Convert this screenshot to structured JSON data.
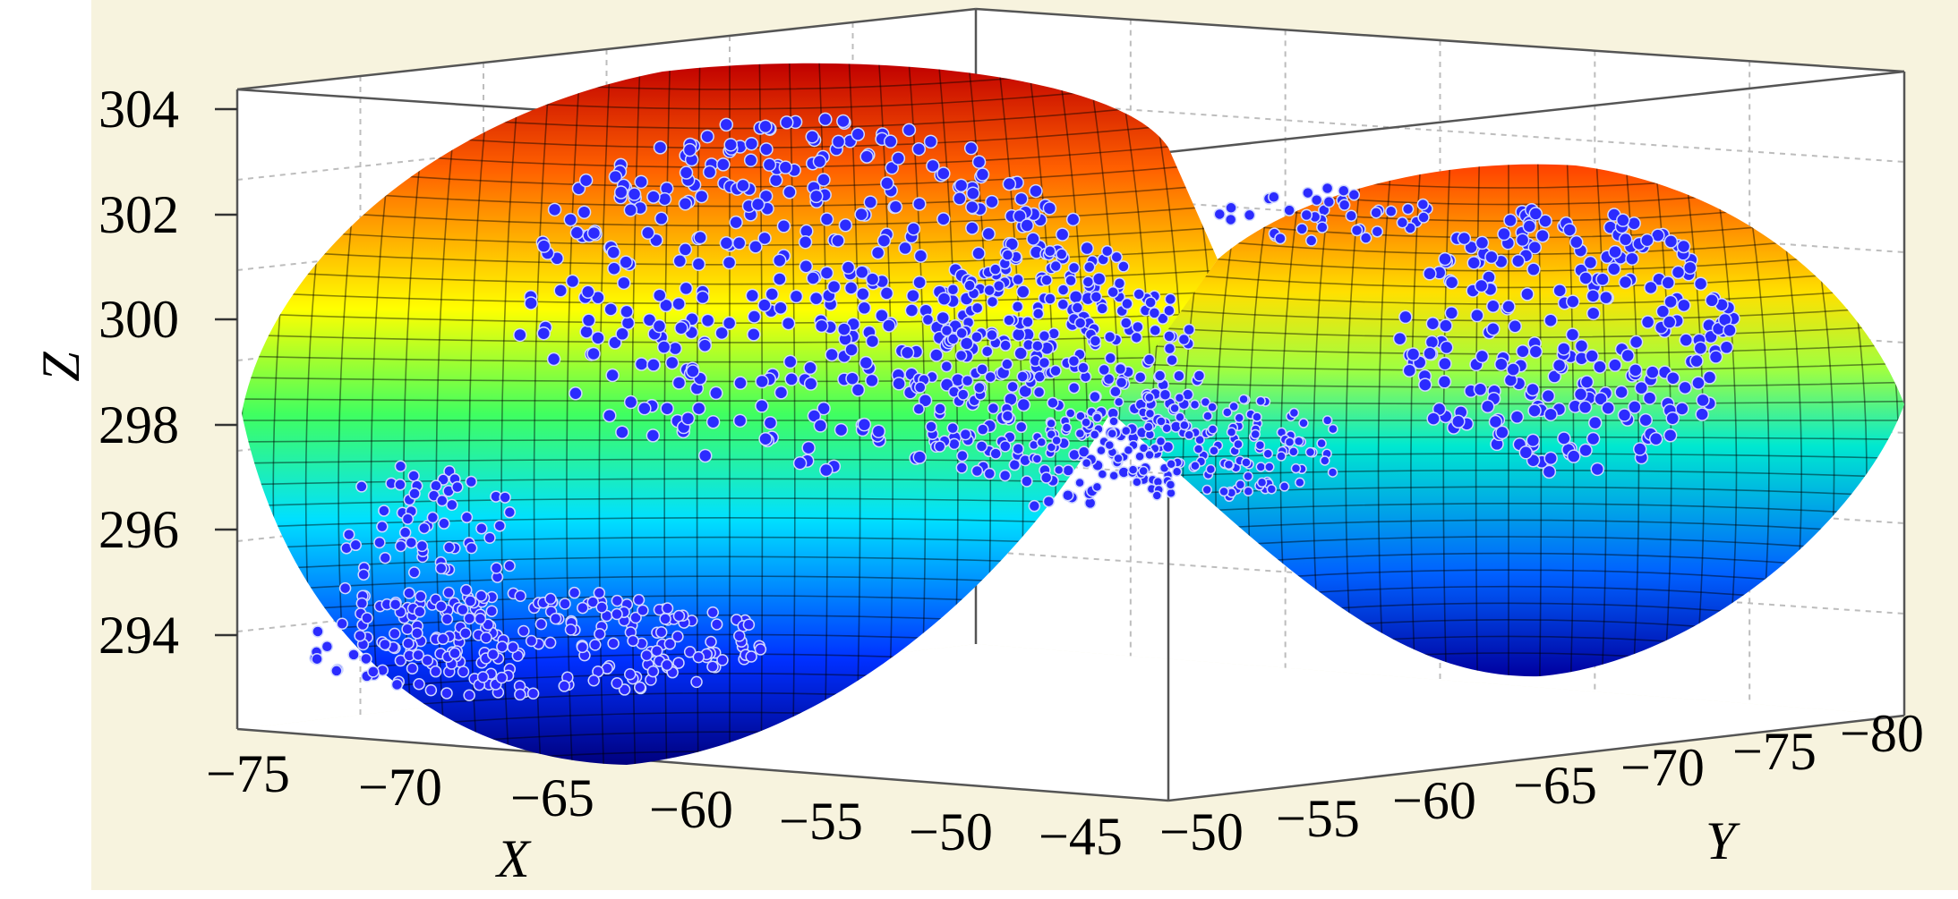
{
  "chart_data": {
    "type": "surface-scatter-3d",
    "title": "",
    "xlabel": "X",
    "ylabel": "Y",
    "zlabel": "Z",
    "x_ticks": [
      "−75",
      "−70",
      "−65",
      "−60",
      "−55",
      "−50",
      "−45"
    ],
    "y_ticks": [
      "−50",
      "−55",
      "−60",
      "−65",
      "−70",
      "−75",
      "−80"
    ],
    "z_ticks": [
      "304",
      "302",
      "300",
      "298",
      "296",
      "294"
    ],
    "xlim": [
      -77,
      -44
    ],
    "ylim": [
      -80,
      -49
    ],
    "zlim": [
      292,
      305
    ],
    "surface": {
      "shape": "saddle",
      "colormap": "jet",
      "center": {
        "x": -57,
        "y": -63,
        "z": 297.6
      },
      "z_range": [
        293,
        304.6
      ]
    },
    "scatter": {
      "color": "#2b2bff",
      "description_of_distribution": "dense clusters near saddle surface"
    },
    "grid": true,
    "colors": {
      "background": "#f7f3de",
      "marker": "#2b2bff",
      "grid": "#bfbfbf"
    }
  }
}
